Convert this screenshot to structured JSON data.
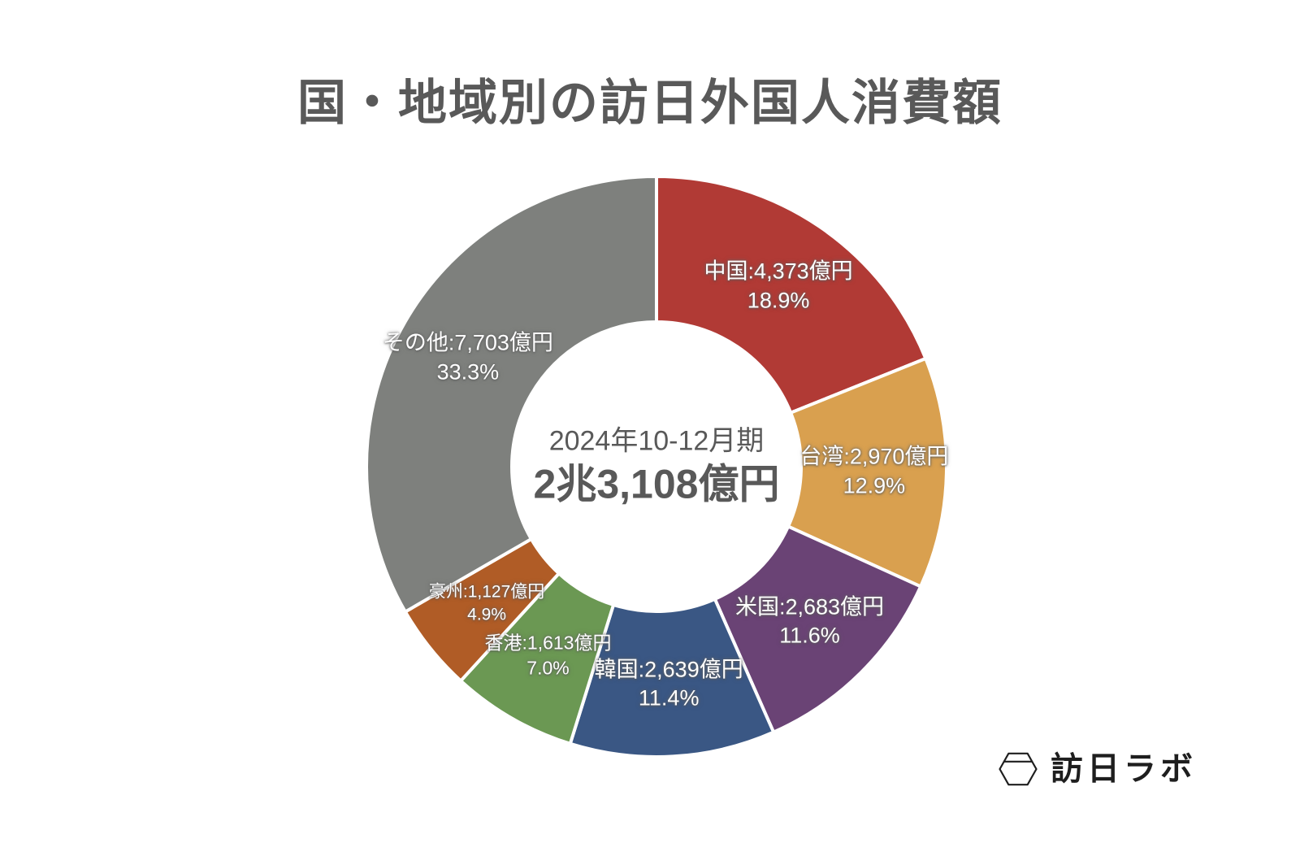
{
  "title": "国・地域別の訪日外国人消費額",
  "center_label": {
    "period": "2024年10-12月期",
    "total": "2兆3,108億円"
  },
  "logo": {
    "text": "訪日ラボ",
    "icon": "hexagon-logo-icon"
  },
  "colors": {
    "background": "#ffffff",
    "title_text": "#595959",
    "center_text": "#595959",
    "slice_label_text": "#ffffff",
    "slice_divider": "#ffffff",
    "logo_text": "#1e1e1e"
  },
  "chart_data": {
    "type": "pie",
    "subtype": "donut",
    "title": "国・地域別の訪日外国人消費額",
    "center_text": [
      "2024年10-12月期",
      "2兆3,108億円"
    ],
    "unit": "億円",
    "total_oku_yen": 23108,
    "start_angle_deg": 0,
    "direction": "clockwise",
    "legend_position": "none",
    "label_format": "{label}:{value}億円 / {percent}%",
    "segments": [
      {
        "label": "中国",
        "value": 4373,
        "percent": 18.9,
        "color": "#b13a35"
      },
      {
        "label": "台湾",
        "value": 2970,
        "percent": 12.9,
        "color": "#d9a04f"
      },
      {
        "label": "米国",
        "value": 2683,
        "percent": 11.6,
        "color": "#6a4375"
      },
      {
        "label": "韓国",
        "value": 2639,
        "percent": 11.4,
        "color": "#3a5784"
      },
      {
        "label": "香港",
        "value": 1613,
        "percent": 7.0,
        "color": "#6b9853"
      },
      {
        "label": "豪州",
        "value": 1127,
        "percent": 4.9,
        "color": "#b05c26"
      },
      {
        "label": "その他",
        "value": 7703,
        "percent": 33.3,
        "color": "#7e807d"
      }
    ]
  }
}
